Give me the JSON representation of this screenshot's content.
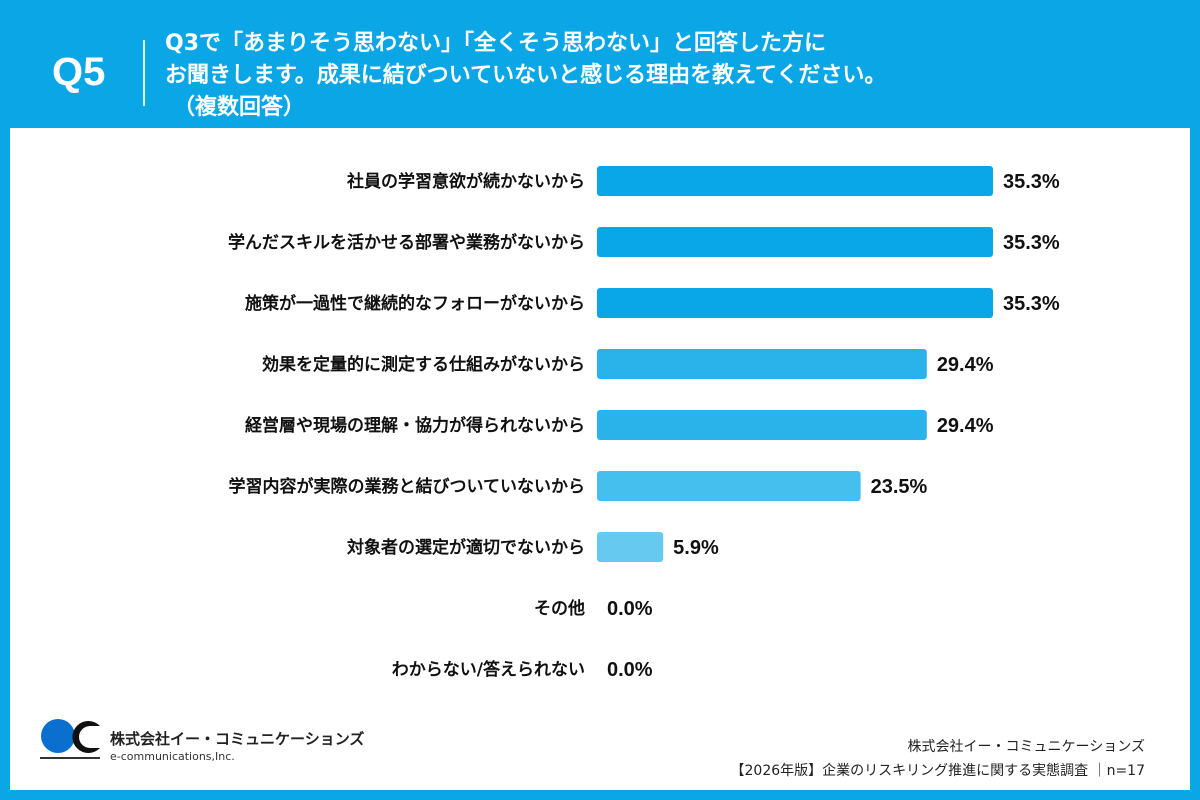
{
  "header": {
    "question_number": "Q5",
    "question_lines": [
      "Q3で「あまりそう思わない」「全くそう思わない」と回答した方に",
      "お聞きします。成果に結びついていないと感じる理由を教えてください。",
      "（複数回答）"
    ]
  },
  "colors": {
    "background": "#0ba6e5",
    "bar_top": "#0aa7e8",
    "bar_mid": "#29b3ea",
    "bar_low": "#45bfee",
    "bar_lowest": "#66caf0"
  },
  "chart_data": {
    "type": "bar",
    "orientation": "horizontal",
    "categories": [
      "社員の学習意欲が続かないから",
      "学んだスキルを活かせる部署や業務がないから",
      "施策が一過性で継続的なフォローがないから",
      "効果を定量的に測定する仕組みがないから",
      "経営層や現場の理解・協力が得られないから",
      "学習内容が実際の業務と結びついていないから",
      "対象者の選定が適切でないから",
      "その他",
      "わからない/答えられない"
    ],
    "values": [
      35.3,
      35.3,
      35.3,
      29.4,
      29.4,
      23.5,
      5.9,
      0.0,
      0.0
    ],
    "value_labels": [
      "35.3%",
      "35.3%",
      "35.3%",
      "29.4%",
      "29.4%",
      "23.5%",
      "5.9%",
      "0.0%",
      "0.0%"
    ],
    "bar_colors": [
      "#0aa7e8",
      "#0aa7e8",
      "#0aa7e8",
      "#29b3ea",
      "#29b3ea",
      "#45bfee",
      "#66caf0",
      "#66caf0",
      "#66caf0"
    ],
    "xlim": [
      0,
      40
    ],
    "grid": false
  },
  "footer": {
    "logo_text_jp": "株式会社イー・コミュニケーションズ",
    "logo_text_en": "e-communications,Inc.",
    "logo_mark_text": "e-communications",
    "source_company": "株式会社イー・コミュニケーションズ",
    "source_survey": "【2026年版】企業のリスキリング推進に関する実態調査 ｜n=17"
  }
}
